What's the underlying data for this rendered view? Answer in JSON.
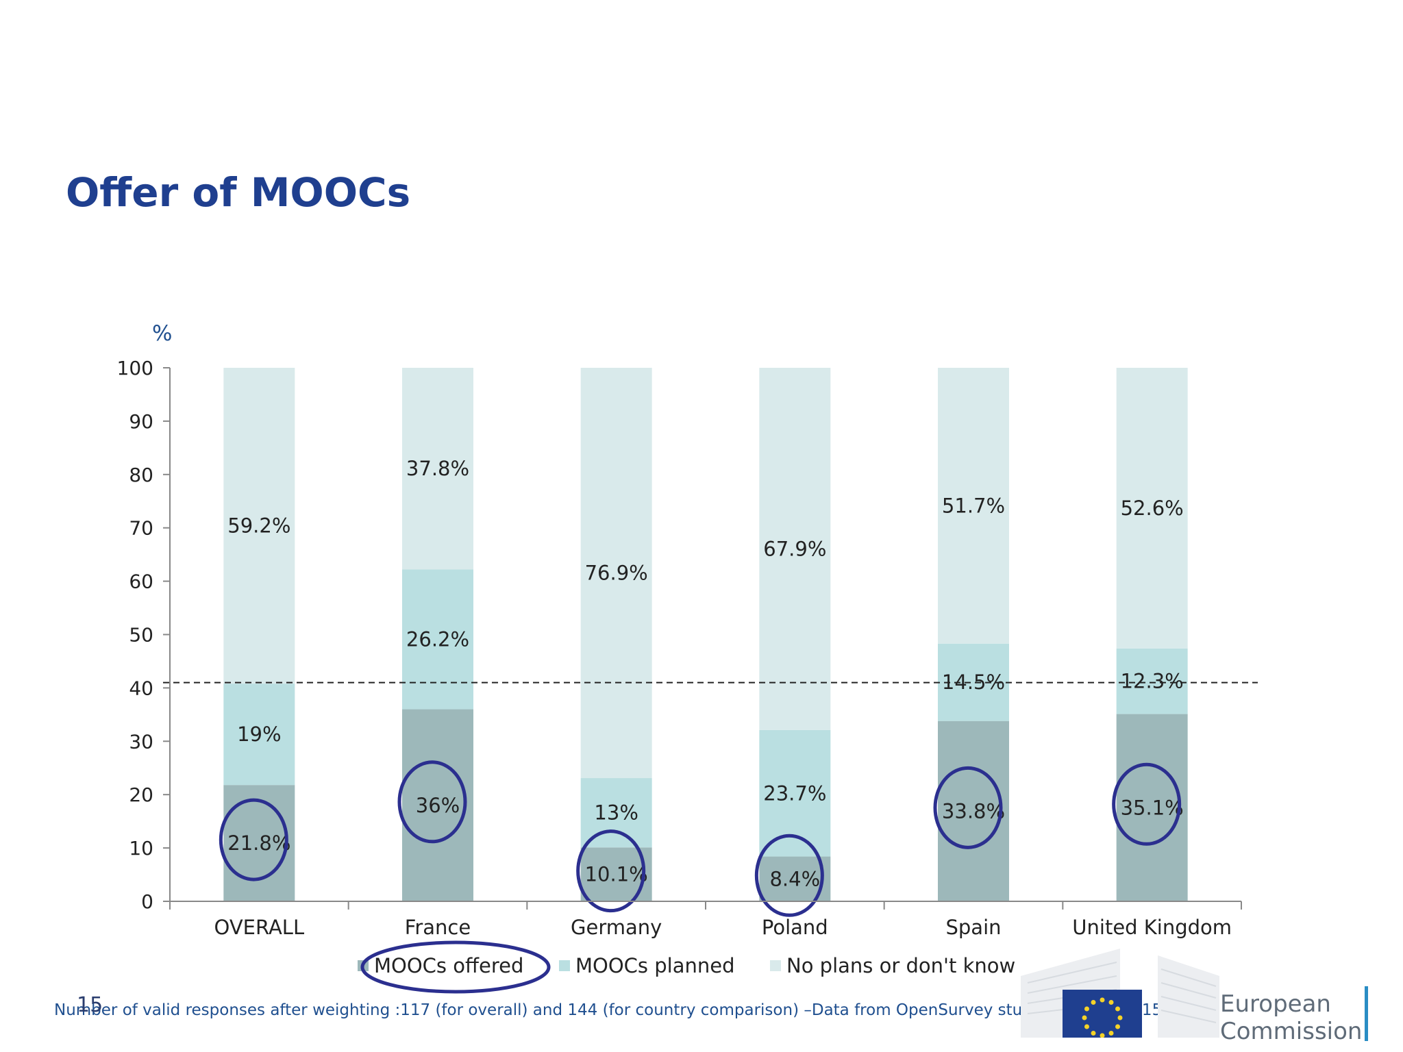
{
  "slide": {
    "title": "Offer of MOOCs",
    "page_number": "15",
    "footnote": "Number of valid responses after weighting :117 (for overall) and  144 (for country comparison) –Data from OpenSurvey study, JRC-IPTS 2015."
  },
  "logo": {
    "line1": "European",
    "line2": "Commission",
    "flag_color": "#1f3f8f",
    "star_color": "#f5d328"
  },
  "chart_data": {
    "type": "bar",
    "stacked": true,
    "ylabel": "%",
    "ylim": [
      0,
      100
    ],
    "yticks": [
      0,
      10,
      20,
      30,
      40,
      50,
      60,
      70,
      80,
      90,
      100
    ],
    "categories": [
      "OVERALL",
      "France",
      "Germany",
      "Poland",
      "Spain",
      "United Kingdom"
    ],
    "series": [
      {
        "name": "MOOCs offered",
        "color": "#9db8ba",
        "values": [
          21.8,
          36,
          10.1,
          8.4,
          33.8,
          35.1
        ],
        "labels": [
          "21.8%",
          "36%",
          "10.1%",
          "8.4%",
          "33.8%",
          "35.1%"
        ]
      },
      {
        "name": "MOOCs planned",
        "color": "#badfe1",
        "values": [
          19,
          26.2,
          13,
          23.7,
          14.5,
          12.3
        ],
        "labels": [
          "19%",
          "26.2%",
          "13%",
          "23.7%",
          "14.5%",
          "12.3%"
        ]
      },
      {
        "name": "No plans or don't know",
        "color": "#d9eaeb",
        "values": [
          59.2,
          37.8,
          76.9,
          67.9,
          51.7,
          52.6
        ],
        "labels": [
          "59.2%",
          "37.8%",
          "76.9%",
          "67.9%",
          "51.7%",
          "52.6%"
        ]
      }
    ],
    "reference_line": 41,
    "highlighted_series": "MOOCs offered",
    "highlight_color": "#2b2f8f",
    "legend_position": "bottom"
  }
}
